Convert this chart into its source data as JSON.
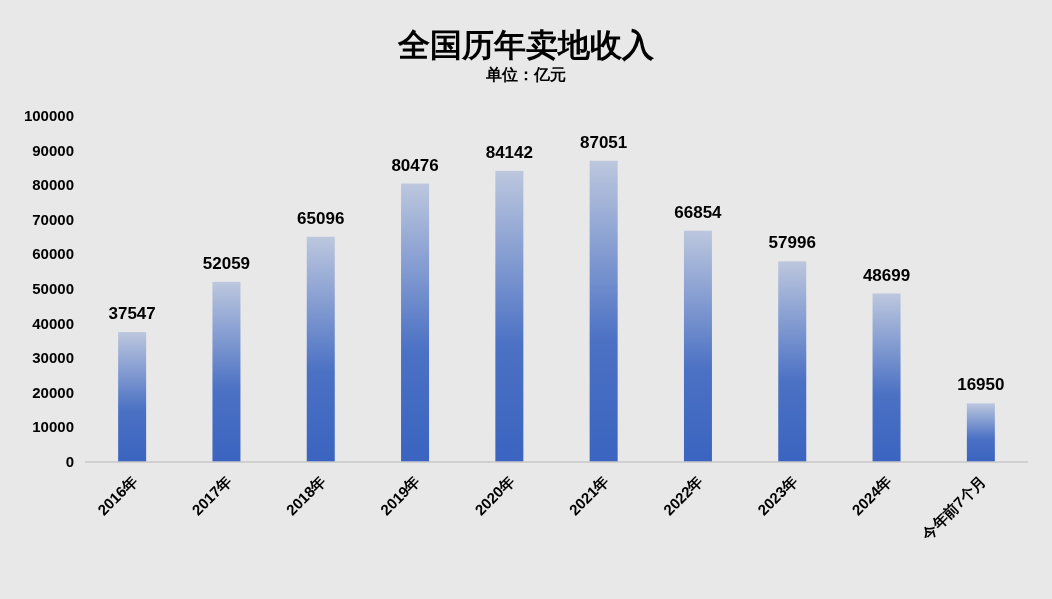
{
  "chart_data": {
    "type": "bar",
    "title": "全国历年卖地收入",
    "subtitle": "单位：亿元",
    "categories": [
      "2016年",
      "2017年",
      "2018年",
      "2019年",
      "2020年",
      "2021年",
      "2022年",
      "2023年",
      "2024年",
      "今年前7个月"
    ],
    "values": [
      37547,
      52059,
      65096,
      80476,
      84142,
      87051,
      66854,
      57996,
      48699,
      16950
    ],
    "color": "#3a64c0",
    "ylim": [
      0,
      100000
    ],
    "yticks": [
      0,
      10000,
      20000,
      30000,
      40000,
      50000,
      60000,
      70000,
      80000,
      90000,
      100000
    ],
    "grid": false,
    "data_labels": true
  }
}
